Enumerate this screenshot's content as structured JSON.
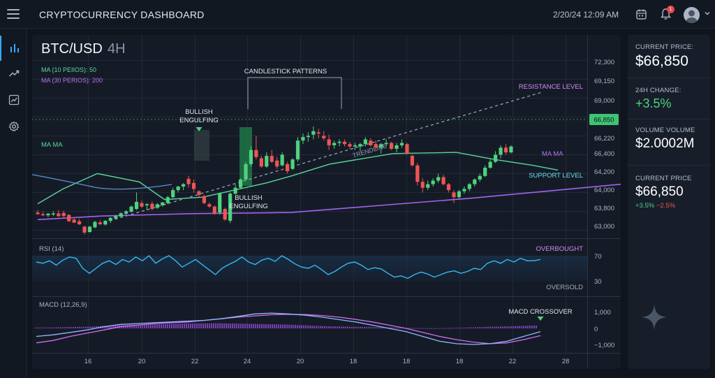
{
  "app": {
    "title": "CRYPTOCURRENCY DASHBOARD",
    "datetime": "2/20/24 12:09 AM",
    "notification_count": "1"
  },
  "icons": {
    "menu": "menu-icon",
    "calendar": "calendar-icon",
    "bell": "bell-icon",
    "avatar": "user-avatar",
    "nav": [
      "bar-chart-icon",
      "trending-up-icon",
      "line-chart-icon",
      "gear-icon"
    ],
    "sparkle": "sparkle-icon"
  },
  "colors": {
    "bull": "#4fd27e",
    "bear": "#ef5454",
    "resistance": "#c466f2",
    "support": "#43d6f0",
    "ma10": "#59d6a0",
    "ma30": "#a363f0",
    "rsi": "#36b9f0",
    "macd": "#8fb8ff",
    "signal": "#d06ef2",
    "accent": "#3aa7ff"
  },
  "chart": {
    "pair": "BTC/USD",
    "timeframe": "4H",
    "ma10_label": "MA (10 PEIIOS): 50",
    "ma30_label": "MA (30 PERIOS): 200",
    "annotations": {
      "candlestick_patterns": "CANDLESTICK PATTERNS",
      "bullish_engulfing_top": [
        "BULLISH",
        "ENGULFING"
      ],
      "bullish_engulfing_bottom": [
        "BULLISH",
        "ENGULFING"
      ],
      "resistance": "RESISTANCE LEVEL",
      "support": "SUPPORT LEVEL",
      "trendline": "TRENDLINE",
      "ma_left": "MA MA",
      "ma_right": "MA MA",
      "current_price_tag": "66,850"
    },
    "price_ticks": [
      "72,300",
      "69,150",
      "69,000",
      "66,850",
      "66,220",
      "66,400",
      "64,200",
      "64,000",
      "63,800",
      "63,000"
    ],
    "x_ticks": [
      "16",
      "20",
      "22",
      "24",
      "20",
      "18",
      "18",
      "18",
      "22",
      "28"
    ],
    "rsi": {
      "label": "RSI (14)",
      "overbought": "OVERBOUGHT",
      "oversold": "OVERSOLD",
      "ticks": [
        "70",
        "30"
      ]
    },
    "macd": {
      "label": "MACD (12,26,9)",
      "crossover": "MACD CROSSOVER",
      "ticks": [
        "1,000",
        "0",
        "−1,000"
      ]
    }
  },
  "chart_data": {
    "type": "candlestick",
    "candles": [
      {
        "o": 64050,
        "h": 64150,
        "l": 63950,
        "c": 63980
      },
      {
        "o": 63980,
        "h": 64080,
        "l": 63900,
        "c": 63930
      },
      {
        "o": 63930,
        "h": 64030,
        "l": 63850,
        "c": 64000
      },
      {
        "o": 64000,
        "h": 64100,
        "l": 63900,
        "c": 64010
      },
      {
        "o": 64010,
        "h": 64150,
        "l": 63850,
        "c": 63900
      },
      {
        "o": 64030,
        "h": 64130,
        "l": 63850,
        "c": 63900
      },
      {
        "o": 63950,
        "h": 63980,
        "l": 63650,
        "c": 63680
      },
      {
        "o": 63750,
        "h": 63850,
        "l": 63600,
        "c": 63620
      },
      {
        "o": 63680,
        "h": 63780,
        "l": 63520,
        "c": 63550
      },
      {
        "o": 63450,
        "h": 63480,
        "l": 63120,
        "c": 63200
      },
      {
        "o": 63220,
        "h": 63480,
        "l": 63200,
        "c": 63450
      },
      {
        "o": 63420,
        "h": 63700,
        "l": 63380,
        "c": 63650
      },
      {
        "o": 63630,
        "h": 63720,
        "l": 63530,
        "c": 63550
      },
      {
        "o": 63540,
        "h": 63720,
        "l": 63500,
        "c": 63700
      },
      {
        "o": 63700,
        "h": 63850,
        "l": 63600,
        "c": 63820
      },
      {
        "o": 63800,
        "h": 63950,
        "l": 63750,
        "c": 63900
      },
      {
        "o": 63880,
        "h": 64050,
        "l": 63850,
        "c": 64020
      },
      {
        "o": 64000,
        "h": 64150,
        "l": 63950,
        "c": 64100
      },
      {
        "o": 64080,
        "h": 64350,
        "l": 64050,
        "c": 64300
      },
      {
        "o": 64200,
        "h": 64900,
        "l": 64150,
        "c": 64500
      },
      {
        "o": 64450,
        "h": 64550,
        "l": 64250,
        "c": 64300
      },
      {
        "o": 64350,
        "h": 64450,
        "l": 64150,
        "c": 64400
      },
      {
        "o": 64420,
        "h": 64520,
        "l": 64150,
        "c": 64200
      },
      {
        "o": 64250,
        "h": 64450,
        "l": 64200,
        "c": 64400
      },
      {
        "o": 64350,
        "h": 64500,
        "l": 64300,
        "c": 64480
      },
      {
        "o": 64450,
        "h": 64750,
        "l": 64400,
        "c": 64700
      },
      {
        "o": 64700,
        "h": 65100,
        "l": 64650,
        "c": 65000
      },
      {
        "o": 65000,
        "h": 65180,
        "l": 64900,
        "c": 65150
      },
      {
        "o": 65150,
        "h": 65300,
        "l": 65000,
        "c": 65250
      },
      {
        "o": 65480,
        "h": 65600,
        "l": 65100,
        "c": 65250
      },
      {
        "o": 65300,
        "h": 65450,
        "l": 64900,
        "c": 65050
      },
      {
        "o": 64950,
        "h": 65000,
        "l": 64700,
        "c": 64800
      },
      {
        "o": 64750,
        "h": 64800,
        "l": 64400,
        "c": 64450
      },
      {
        "o": 64400,
        "h": 64480,
        "l": 64250,
        "c": 64300
      },
      {
        "o": 64300,
        "h": 64350,
        "l": 63950,
        "c": 64000
      },
      {
        "o": 64050,
        "h": 64900,
        "l": 63950,
        "c": 64850
      },
      {
        "o": 64200,
        "h": 64250,
        "l": 63700,
        "c": 63750
      },
      {
        "o": 63700,
        "h": 64900,
        "l": 63600,
        "c": 64850
      },
      {
        "o": 64850,
        "h": 65250,
        "l": 64800,
        "c": 65100
      },
      {
        "o": 65100,
        "h": 65500,
        "l": 65050,
        "c": 65450
      },
      {
        "o": 65450,
        "h": 66200,
        "l": 65400,
        "c": 66100
      },
      {
        "o": 66100,
        "h": 66850,
        "l": 66000,
        "c": 66700
      },
      {
        "o": 66700,
        "h": 67300,
        "l": 66300,
        "c": 66400
      },
      {
        "o": 66350,
        "h": 66450,
        "l": 65950,
        "c": 66000
      },
      {
        "o": 66000,
        "h": 66600,
        "l": 65950,
        "c": 66450
      },
      {
        "o": 66450,
        "h": 66700,
        "l": 66150,
        "c": 66200
      },
      {
        "o": 66250,
        "h": 66400,
        "l": 65900,
        "c": 66000
      },
      {
        "o": 66050,
        "h": 66600,
        "l": 66000,
        "c": 66500
      },
      {
        "o": 66100,
        "h": 66200,
        "l": 65700,
        "c": 65800
      },
      {
        "o": 65900,
        "h": 66350,
        "l": 65850,
        "c": 66300
      },
      {
        "o": 66300,
        "h": 67250,
        "l": 66200,
        "c": 67100
      },
      {
        "o": 67100,
        "h": 67400,
        "l": 66950,
        "c": 67250
      },
      {
        "o": 67250,
        "h": 67450,
        "l": 67050,
        "c": 67300
      },
      {
        "o": 67350,
        "h": 67700,
        "l": 67150,
        "c": 67500
      },
      {
        "o": 67450,
        "h": 67600,
        "l": 67200,
        "c": 67400
      },
      {
        "o": 67300,
        "h": 67500,
        "l": 67100,
        "c": 67200
      },
      {
        "o": 67150,
        "h": 67350,
        "l": 66700,
        "c": 66900
      },
      {
        "o": 66900,
        "h": 67100,
        "l": 66750,
        "c": 67000
      },
      {
        "o": 67000,
        "h": 67150,
        "l": 66850,
        "c": 67050
      },
      {
        "o": 67050,
        "h": 67150,
        "l": 66850,
        "c": 66950
      },
      {
        "o": 66950,
        "h": 67050,
        "l": 66750,
        "c": 66850
      },
      {
        "o": 66850,
        "h": 67000,
        "l": 66700,
        "c": 66900
      },
      {
        "o": 66850,
        "h": 67000,
        "l": 66650,
        "c": 66950
      },
      {
        "o": 66950,
        "h": 67250,
        "l": 66850,
        "c": 67150
      },
      {
        "o": 67100,
        "h": 67200,
        "l": 66850,
        "c": 66900
      },
      {
        "o": 66950,
        "h": 67100,
        "l": 66700,
        "c": 66800
      },
      {
        "o": 66800,
        "h": 67000,
        "l": 66550,
        "c": 66950
      },
      {
        "o": 66950,
        "h": 67150,
        "l": 66850,
        "c": 67000
      },
      {
        "o": 67000,
        "h": 67050,
        "l": 66700,
        "c": 66750
      },
      {
        "o": 66750,
        "h": 67000,
        "l": 66600,
        "c": 66900
      },
      {
        "o": 66900,
        "h": 67150,
        "l": 66800,
        "c": 67000
      },
      {
        "o": 66950,
        "h": 67000,
        "l": 66500,
        "c": 66550
      },
      {
        "o": 66450,
        "h": 66500,
        "l": 66000,
        "c": 66050
      },
      {
        "o": 66050,
        "h": 66150,
        "l": 65200,
        "c": 65350
      },
      {
        "o": 65350,
        "h": 65500,
        "l": 64900,
        "c": 65100
      },
      {
        "o": 65100,
        "h": 65400,
        "l": 65000,
        "c": 65250
      },
      {
        "o": 65250,
        "h": 65500,
        "l": 65150,
        "c": 65400
      },
      {
        "o": 65400,
        "h": 65700,
        "l": 65300,
        "c": 65550
      },
      {
        "o": 65550,
        "h": 65650,
        "l": 65200,
        "c": 65250
      },
      {
        "o": 65250,
        "h": 65300,
        "l": 64900,
        "c": 65000
      },
      {
        "o": 64900,
        "h": 65000,
        "l": 64450,
        "c": 64700
      },
      {
        "o": 64700,
        "h": 65000,
        "l": 64650,
        "c": 64950
      },
      {
        "o": 64950,
        "h": 65150,
        "l": 64850,
        "c": 65050
      },
      {
        "o": 65050,
        "h": 65300,
        "l": 64950,
        "c": 65250
      },
      {
        "o": 65250,
        "h": 65500,
        "l": 65150,
        "c": 65450
      },
      {
        "o": 65450,
        "h": 65700,
        "l": 65350,
        "c": 65600
      },
      {
        "o": 65600,
        "h": 66050,
        "l": 65550,
        "c": 65950
      },
      {
        "o": 65950,
        "h": 66300,
        "l": 65900,
        "c": 66200
      },
      {
        "o": 66200,
        "h": 66650,
        "l": 66150,
        "c": 66500
      },
      {
        "o": 66500,
        "h": 66900,
        "l": 66350,
        "c": 66800
      },
      {
        "o": 66800,
        "h": 66950,
        "l": 66500,
        "c": 66600
      },
      {
        "o": 66600,
        "h": 66900,
        "l": 66550,
        "c": 66850
      }
    ],
    "ma10": [
      [
        64420,
        0
      ],
      [
        65050,
        20
      ],
      [
        65700,
        47
      ],
      [
        65350,
        80
      ],
      [
        64600,
        100
      ],
      [
        64700,
        130
      ],
      [
        65300,
        180
      ],
      [
        65600,
        200
      ],
      [
        66100,
        230
      ],
      [
        66550,
        280
      ],
      [
        66600,
        330
      ],
      [
        66300,
        360
      ],
      [
        66050,
        390
      ],
      [
        65850,
        410
      ]
    ],
    "ma30": [
      [
        63750,
        0
      ],
      [
        63900,
        50
      ],
      [
        64000,
        120
      ],
      [
        64050,
        200
      ],
      [
        64350,
        270
      ],
      [
        64650,
        340
      ],
      [
        64950,
        400
      ],
      [
        65250,
        460
      ],
      [
        65500,
        540
      ],
      [
        65800,
        600
      ],
      [
        66000,
        640
      ],
      [
        66200,
        700
      ],
      [
        66450,
        770
      ]
    ],
    "trendline": {
      "from": [
        63000,
        5
      ],
      "to": [
        69100,
        96
      ]
    },
    "resistance": 69150,
    "support": 65950,
    "current_price": 66850,
    "rsi_values": [
      60,
      58,
      62,
      55,
      63,
      68,
      66,
      50,
      42,
      50,
      58,
      62,
      56,
      64,
      60,
      68,
      62,
      70,
      58,
      65,
      70,
      62,
      52,
      58,
      64,
      56,
      48,
      40,
      50,
      56,
      61,
      68,
      60,
      56,
      63,
      66,
      61,
      70,
      64,
      57,
      52,
      50,
      55,
      48,
      40,
      45,
      52,
      58,
      60,
      55,
      48,
      51,
      49,
      42,
      36,
      38,
      34,
      40,
      44,
      41,
      36,
      40,
      44,
      46,
      42,
      45,
      50,
      48,
      58,
      62,
      58,
      64,
      60,
      66,
      62,
      62,
      64
    ],
    "macd_line": [
      -500,
      -400,
      -250,
      -100,
      100,
      250,
      300,
      350,
      400,
      450,
      500,
      600,
      750,
      900,
      950,
      900,
      820,
      700,
      550,
      400,
      200,
      0,
      -200,
      -500,
      -800,
      -950,
      -1000,
      -950,
      -800,
      -500,
      -200
    ],
    "signal_line": [
      -900,
      -750,
      -500,
      -300,
      -100,
      100,
      200,
      300,
      350,
      400,
      500,
      600,
      700,
      780,
      850,
      880,
      860,
      800,
      700,
      560,
      400,
      200,
      0,
      -250,
      -500,
      -700,
      -850,
      -950,
      -900,
      -700,
      -450
    ],
    "histogram": [
      50,
      60,
      80,
      100,
      150,
      200,
      240,
      260,
      280,
      300,
      310,
      320,
      300,
      280,
      260,
      240,
      200,
      150,
      120,
      100,
      80,
      60,
      40,
      20,
      10,
      30,
      60,
      90,
      120,
      150,
      180
    ]
  },
  "stats": [
    {
      "label": "CURRENT PRICE:",
      "value": "$66,850"
    },
    {
      "label": "24H CHANGE:",
      "value": "+3.5%"
    },
    {
      "label": "VOLUME VOLUME",
      "value": "$2.0002M"
    },
    {
      "label": "CURRENT PRICE",
      "value": "$66,850",
      "sub_pos": "+3.5%",
      "sub_neg": "−2.5%"
    }
  ]
}
